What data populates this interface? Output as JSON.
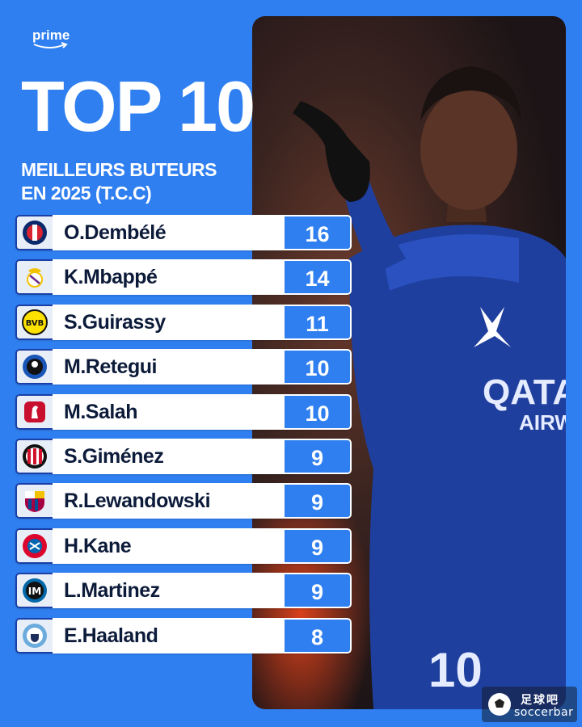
{
  "brand": {
    "name": "prime"
  },
  "title": "TOP 10",
  "subtitle_line1": "MEILLEURS BUTEURS",
  "subtitle_line2": "EN 2025 (T.C.C)",
  "ranking": [
    {
      "player": "O.Dembélé",
      "goals": "16",
      "club_icon": "psg-crest-icon"
    },
    {
      "player": "K.Mbappé",
      "goals": "14",
      "club_icon": "real-madrid-crest-icon"
    },
    {
      "player": "S.Guirassy",
      "goals": "11",
      "club_icon": "bvb-crest-icon"
    },
    {
      "player": "M.Retegui",
      "goals": "10",
      "club_icon": "atalanta-crest-icon"
    },
    {
      "player": "M.Salah",
      "goals": "10",
      "club_icon": "liverpool-crest-icon"
    },
    {
      "player": "S.Giménez",
      "goals": "9",
      "club_icon": "ac-milan-crest-icon"
    },
    {
      "player": "R.Lewandowski",
      "goals": "9",
      "club_icon": "barcelona-crest-icon"
    },
    {
      "player": "H.Kane",
      "goals": "9",
      "club_icon": "bayern-crest-icon"
    },
    {
      "player": "L.Martinez",
      "goals": "9",
      "club_icon": "inter-crest-icon"
    },
    {
      "player": "E.Haaland",
      "goals": "8",
      "club_icon": "man-city-crest-icon"
    }
  ],
  "shirt": {
    "sponsor_line1": "QATAR",
    "sponsor_line2": "AIRWAYS",
    "number": "10"
  },
  "watermark": {
    "cn": "足球吧",
    "en": "soccerbar"
  },
  "colors": {
    "background": "#2f7ff0",
    "row_text": "#0d1b3a",
    "crest_border": "#1a3fa6"
  }
}
